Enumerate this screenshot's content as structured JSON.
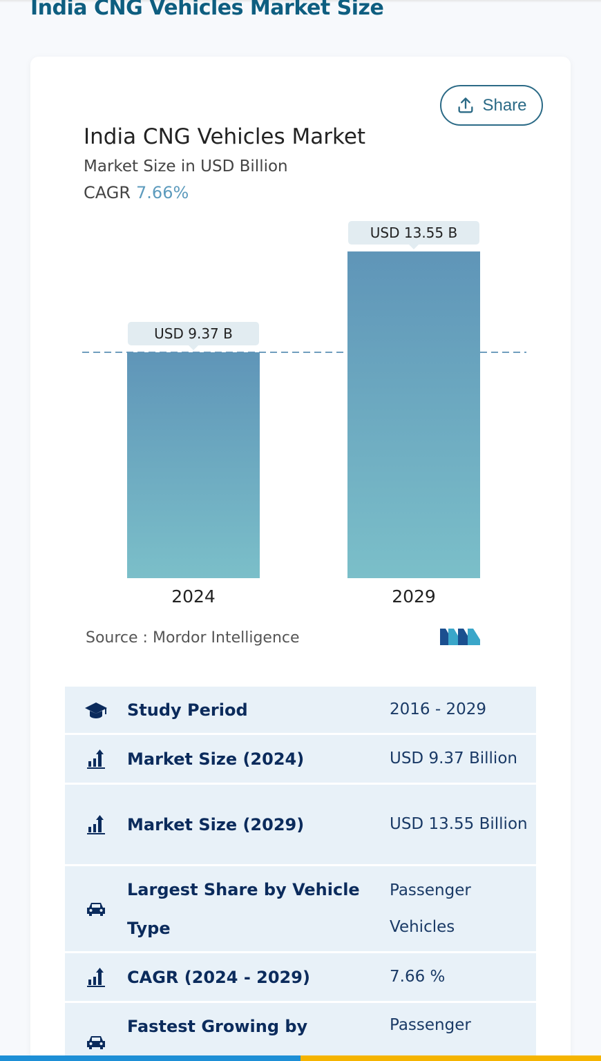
{
  "page": {
    "title": "India CNG Vehicles Market Size"
  },
  "share": {
    "label": "Share"
  },
  "chart_data": {
    "type": "bar",
    "title": "India CNG Vehicles Market",
    "subtitle": "Market Size in USD Billion",
    "cagr_label": "CAGR",
    "cagr_value": "7.66%",
    "categories": [
      "2024",
      "2029"
    ],
    "values": [
      9.37,
      13.55
    ],
    "data_labels": [
      "USD 9.37 B",
      "USD 13.55 B"
    ],
    "reference_line": 9.37,
    "colors": {
      "bar_top": "#5f95b8",
      "bar_bottom": "#7bbfc9",
      "label_bg": "#e2ecf1",
      "dash": "#6f9dbd"
    },
    "ylim": [
      0,
      15.5
    ],
    "legend": "none",
    "grid": false
  },
  "source": {
    "text": "Source :  Mordor Intelligence"
  },
  "stats": {
    "rows": [
      {
        "icon": "graduation-cap-icon",
        "label": "Study Period",
        "value": "2016 - 2029"
      },
      {
        "icon": "bar-growth-icon",
        "label": "Market Size (2024)",
        "value": "USD 9.37 Billion"
      },
      {
        "icon": "bar-growth-icon",
        "label": "Market Size (2029)",
        "value": "USD 13.55 Billion"
      },
      {
        "icon": "car-icon",
        "label": "Largest Share by Vehicle Type",
        "value": "Passenger Vehicles"
      },
      {
        "icon": "bar-growth-icon",
        "label": "CAGR (2024 - 2029)",
        "value": "7.66 %"
      },
      {
        "icon": "car-icon",
        "label": "Fastest Growing by",
        "value": "Passenger"
      }
    ]
  },
  "colors": {
    "title": "#0e5e80",
    "accent": "#2b6a86",
    "row_bg": "#e8f1f8",
    "label": "#0b2b5c",
    "bar_blue": "#1d8fd6",
    "bar_gold": "#f5b400"
  }
}
